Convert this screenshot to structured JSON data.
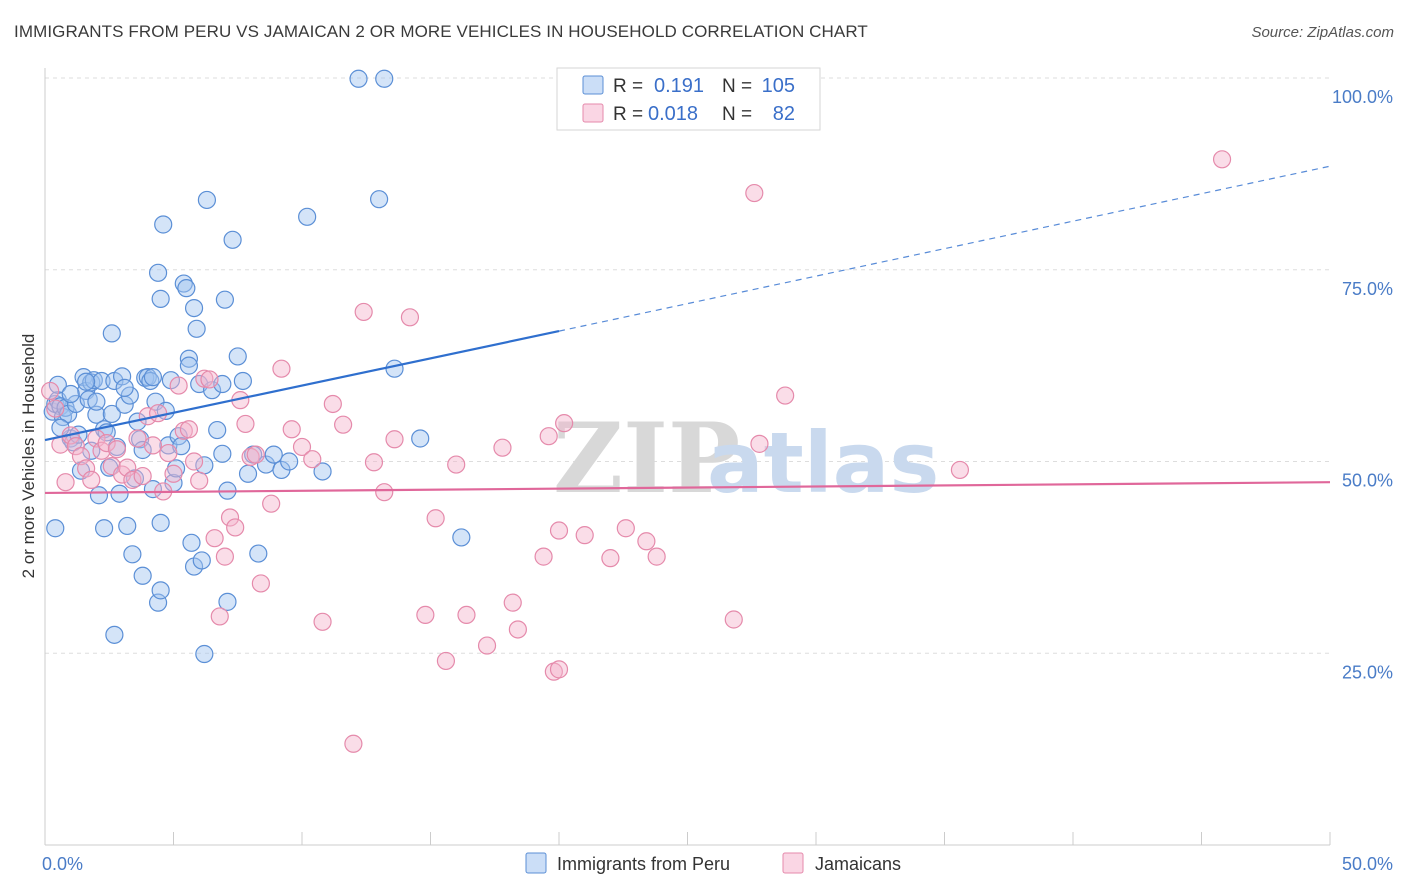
{
  "title": "IMMIGRANTS FROM PERU VS JAMAICAN 2 OR MORE VEHICLES IN HOUSEHOLD CORRELATION CHART",
  "source": "Source: ZipAtlas.com",
  "colors": {
    "peru_fill": "rgba(160,195,240,0.45)",
    "peru_stroke": "#5b8fd6",
    "peru_line": "#2f6fce",
    "jam_fill": "rgba(245,180,205,0.45)",
    "jam_stroke": "#e58aab",
    "jam_line": "#e0679a",
    "axis_label": "#4a7cc7",
    "grid": "#dddddd"
  },
  "legend": {
    "row1": {
      "r_label": "R =",
      "r_value": "0.191",
      "n_label": "N =",
      "n_value": "105"
    },
    "row2": {
      "r_label": "R =",
      "r_value": "0.018",
      "n_label": "N =",
      "n_value": "82"
    }
  },
  "watermark": {
    "zip": "ZIP",
    "atlas": "atlas"
  },
  "chart_data": {
    "type": "scatter",
    "title": "IMMIGRANTS FROM PERU VS JAMAICAN 2 OR MORE VEHICLES IN HOUSEHOLD CORRELATION CHART",
    "xlabel": "",
    "ylabel": "2 or more Vehicles in Household",
    "xlim": [
      0,
      50
    ],
    "ylim": [
      0,
      102
    ],
    "x_tick_labels": [
      {
        "value": 0,
        "label": "0.0%"
      },
      {
        "value": 50,
        "label": "50.0%"
      }
    ],
    "y_tick_labels": [
      {
        "value": 100,
        "label": "100.0%"
      },
      {
        "value": 75,
        "label": "75.0%"
      },
      {
        "value": 50,
        "label": "50.0%"
      },
      {
        "value": 25,
        "label": "25.0%"
      }
    ],
    "grid": true,
    "legend_position": "top-center",
    "series": [
      {
        "name": "Immigrants from Peru",
        "color": "#5b8fd6",
        "trend": {
          "x0": 0,
          "y0": 52.8,
          "x1": 20,
          "y1": 67.0,
          "dashed_to_x": 50,
          "dashed_to_y": 88.5
        },
        "points": [
          [
            0.3,
            56.5
          ],
          [
            0.4,
            57.5
          ],
          [
            0.5,
            58.0
          ],
          [
            0.6,
            57.2
          ],
          [
            0.7,
            55.8
          ],
          [
            0.8,
            57.0
          ],
          [
            0.5,
            60.0
          ],
          [
            0.9,
            56.2
          ],
          [
            1.0,
            53.0
          ],
          [
            1.1,
            52.5
          ],
          [
            1.2,
            57.5
          ],
          [
            1.3,
            53.5
          ],
          [
            1.4,
            48.8
          ],
          [
            1.5,
            61.0
          ],
          [
            1.6,
            59.2
          ],
          [
            1.7,
            58.1
          ],
          [
            1.8,
            60.3
          ],
          [
            1.9,
            60.6
          ],
          [
            2.0,
            56.1
          ],
          [
            2.1,
            45.6
          ],
          [
            2.2,
            60.5
          ],
          [
            2.3,
            54.2
          ],
          [
            2.4,
            53.8
          ],
          [
            2.5,
            49.2
          ],
          [
            2.6,
            56.2
          ],
          [
            2.7,
            60.5
          ],
          [
            2.8,
            51.9
          ],
          [
            2.9,
            45.8
          ],
          [
            3.0,
            61.1
          ],
          [
            3.1,
            57.4
          ],
          [
            3.2,
            41.6
          ],
          [
            3.3,
            58.6
          ],
          [
            3.4,
            37.9
          ],
          [
            3.5,
            47.8
          ],
          [
            3.6,
            55.2
          ],
          [
            3.7,
            52.9
          ],
          [
            3.8,
            51.5
          ],
          [
            3.9,
            60.9
          ],
          [
            4.0,
            61.0
          ],
          [
            4.1,
            60.5
          ],
          [
            4.2,
            46.4
          ],
          [
            4.3,
            57.8
          ],
          [
            4.4,
            74.6
          ],
          [
            4.5,
            71.2
          ],
          [
            4.6,
            80.9
          ],
          [
            4.7,
            56.6
          ],
          [
            4.8,
            52.1
          ],
          [
            4.9,
            60.6
          ],
          [
            5.0,
            47.2
          ],
          [
            5.1,
            49.1
          ],
          [
            5.2,
            53.3
          ],
          [
            5.3,
            52.0
          ],
          [
            5.4,
            73.2
          ],
          [
            5.5,
            72.6
          ],
          [
            5.6,
            63.4
          ],
          [
            5.7,
            39.4
          ],
          [
            5.8,
            36.3
          ],
          [
            5.9,
            67.3
          ],
          [
            6.0,
            60.1
          ],
          [
            6.1,
            37.1
          ],
          [
            6.2,
            49.5
          ],
          [
            6.3,
            84.1
          ],
          [
            6.5,
            59.3
          ],
          [
            6.7,
            54.1
          ],
          [
            6.9,
            51.0
          ],
          [
            7.1,
            46.2
          ],
          [
            7.3,
            78.9
          ],
          [
            7.5,
            63.7
          ],
          [
            7.7,
            60.5
          ],
          [
            7.9,
            48.4
          ],
          [
            8.1,
            50.9
          ],
          [
            8.3,
            38.0
          ],
          [
            8.6,
            49.6
          ],
          [
            8.9,
            50.9
          ],
          [
            9.2,
            48.9
          ],
          [
            9.5,
            50.0
          ],
          [
            10.2,
            81.9
          ],
          [
            10.8,
            48.7
          ],
          [
            12.2,
            99.9
          ],
          [
            13.0,
            84.2
          ],
          [
            13.2,
            99.9
          ],
          [
            13.6,
            62.1
          ],
          [
            14.6,
            53.0
          ],
          [
            16.2,
            40.1
          ],
          [
            0.4,
            41.3
          ],
          [
            2.7,
            27.4
          ],
          [
            2.3,
            41.3
          ],
          [
            3.8,
            35.1
          ],
          [
            4.4,
            31.6
          ],
          [
            4.5,
            33.2
          ],
          [
            6.2,
            24.9
          ],
          [
            7.1,
            31.7
          ],
          [
            2.6,
            66.7
          ],
          [
            5.8,
            70.0
          ],
          [
            7.0,
            71.1
          ],
          [
            4.2,
            61.0
          ],
          [
            3.1,
            59.6
          ],
          [
            1.6,
            60.4
          ],
          [
            0.6,
            54.4
          ],
          [
            1.0,
            58.8
          ],
          [
            1.8,
            51.4
          ],
          [
            2.0,
            57.8
          ],
          [
            5.6,
            62.5
          ],
          [
            6.9,
            60.1
          ],
          [
            4.5,
            42.0
          ]
        ]
      },
      {
        "name": "Jamaicans",
        "color": "#e58aab",
        "trend": {
          "x0": 0,
          "y0": 45.9,
          "x1": 50,
          "y1": 47.3
        },
        "points": [
          [
            0.2,
            59.2
          ],
          [
            0.4,
            56.9
          ],
          [
            0.6,
            52.2
          ],
          [
            0.8,
            47.3
          ],
          [
            1.0,
            53.4
          ],
          [
            1.2,
            52.0
          ],
          [
            1.4,
            50.7
          ],
          [
            1.6,
            49.1
          ],
          [
            1.8,
            47.6
          ],
          [
            2.0,
            53.0
          ],
          [
            2.2,
            51.4
          ],
          [
            2.4,
            52.4
          ],
          [
            2.6,
            49.4
          ],
          [
            2.8,
            51.6
          ],
          [
            3.0,
            48.3
          ],
          [
            3.2,
            49.2
          ],
          [
            3.4,
            47.6
          ],
          [
            3.6,
            53.0
          ],
          [
            3.8,
            48.1
          ],
          [
            4.0,
            55.9
          ],
          [
            4.2,
            52.1
          ],
          [
            4.4,
            56.3
          ],
          [
            4.6,
            46.1
          ],
          [
            4.8,
            51.1
          ],
          [
            5.0,
            48.4
          ],
          [
            5.2,
            59.9
          ],
          [
            5.4,
            54.0
          ],
          [
            5.6,
            54.2
          ],
          [
            5.8,
            50.0
          ],
          [
            6.0,
            47.5
          ],
          [
            6.2,
            60.8
          ],
          [
            6.4,
            60.7
          ],
          [
            6.6,
            40.0
          ],
          [
            6.8,
            29.8
          ],
          [
            7.0,
            37.6
          ],
          [
            7.2,
            42.7
          ],
          [
            7.4,
            41.4
          ],
          [
            7.6,
            58.0
          ],
          [
            7.8,
            54.9
          ],
          [
            8.0,
            50.6
          ],
          [
            8.2,
            50.9
          ],
          [
            8.4,
            34.1
          ],
          [
            8.8,
            44.5
          ],
          [
            9.2,
            62.1
          ],
          [
            9.6,
            54.2
          ],
          [
            10.0,
            51.9
          ],
          [
            10.4,
            50.3
          ],
          [
            10.8,
            29.1
          ],
          [
            11.2,
            57.5
          ],
          [
            11.6,
            54.8
          ],
          [
            12.0,
            13.2
          ],
          [
            12.4,
            69.5
          ],
          [
            12.8,
            49.9
          ],
          [
            13.2,
            46.0
          ],
          [
            13.6,
            52.9
          ],
          [
            14.2,
            68.8
          ],
          [
            14.8,
            30.0
          ],
          [
            15.2,
            42.6
          ],
          [
            15.6,
            24.0
          ],
          [
            16.0,
            49.6
          ],
          [
            16.4,
            30.0
          ],
          [
            17.2,
            26.0
          ],
          [
            17.8,
            51.8
          ],
          [
            18.2,
            31.6
          ],
          [
            18.4,
            28.1
          ],
          [
            19.4,
            37.6
          ],
          [
            19.6,
            53.3
          ],
          [
            19.8,
            22.6
          ],
          [
            20.0,
            41.0
          ],
          [
            20.2,
            55.0
          ],
          [
            21.0,
            40.4
          ],
          [
            22.0,
            37.4
          ],
          [
            22.6,
            41.3
          ],
          [
            23.4,
            39.6
          ],
          [
            23.8,
            37.6
          ],
          [
            26.8,
            29.4
          ],
          [
            27.6,
            85.0
          ],
          [
            27.8,
            52.3
          ],
          [
            28.8,
            58.6
          ],
          [
            35.6,
            48.9
          ],
          [
            45.8,
            89.4
          ],
          [
            20.0,
            22.9
          ]
        ]
      }
    ]
  },
  "bottom_legend": [
    {
      "label": "Immigrants from Peru"
    },
    {
      "label": "Jamaicans"
    }
  ]
}
